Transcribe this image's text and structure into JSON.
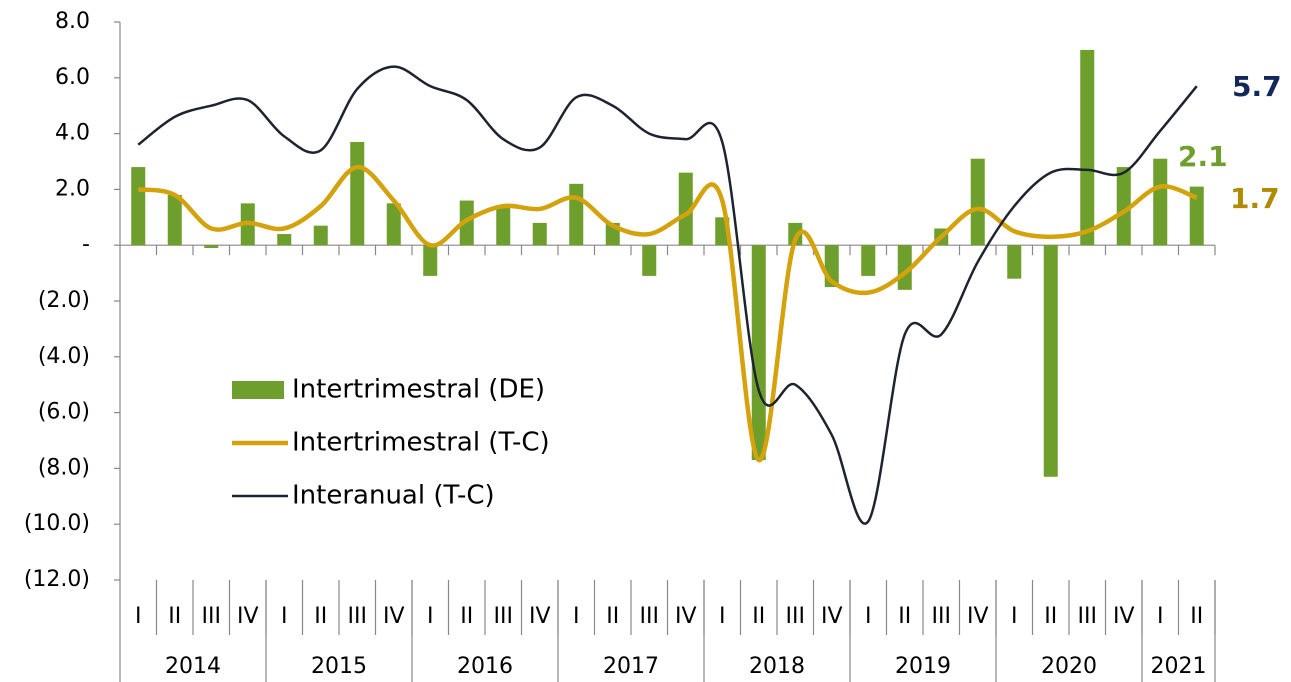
{
  "chart_data": {
    "type": "combo",
    "categories": [
      "I",
      "II",
      "III",
      "IV",
      "I",
      "II",
      "III",
      "IV",
      "I",
      "II",
      "III",
      "IV",
      "I",
      "II",
      "III",
      "IV",
      "I",
      "II",
      "III",
      "IV",
      "I",
      "II",
      "III",
      "IV",
      "I",
      "II",
      "III",
      "IV",
      "I",
      "II"
    ],
    "years": [
      "2014",
      "2015",
      "2016",
      "2017",
      "2018",
      "2019",
      "2020",
      "2021"
    ],
    "series": [
      {
        "name": "Intertrimestral (DE)",
        "type": "bar",
        "color": "#6e9e2c",
        "values": [
          2.8,
          1.8,
          -0.1,
          1.5,
          0.4,
          0.7,
          3.7,
          1.5,
          -1.1,
          1.6,
          1.4,
          0.8,
          2.2,
          0.8,
          -1.1,
          2.6,
          1.0,
          -7.7,
          0.8,
          -1.5,
          -1.1,
          -1.6,
          0.6,
          3.1,
          -1.2,
          -8.3,
          7.0,
          2.8,
          3.1,
          2.1
        ]
      },
      {
        "name": "Intertrimestral (T-C)",
        "type": "line",
        "color": "#d4a20c",
        "values": [
          2.0,
          1.8,
          0.6,
          0.8,
          0.6,
          1.4,
          2.8,
          1.6,
          0.0,
          0.9,
          1.4,
          1.3,
          1.7,
          0.7,
          0.4,
          1.1,
          1.6,
          -7.7,
          0.2,
          -1.3,
          -1.7,
          -1.0,
          0.3,
          1.3,
          0.5,
          0.3,
          0.5,
          1.2,
          2.1,
          1.7
        ]
      },
      {
        "name": "Interanual (T-C)",
        "type": "line",
        "color": "#1e2330",
        "values": [
          3.6,
          4.6,
          5.0,
          5.2,
          3.9,
          3.4,
          5.6,
          6.4,
          5.7,
          5.2,
          3.8,
          3.5,
          5.3,
          5.0,
          4.0,
          3.8,
          3.7,
          -5.2,
          -5.0,
          -6.8,
          -9.9,
          -3.2,
          -3.2,
          -0.6,
          1.4,
          2.6,
          2.7,
          2.6,
          4.1,
          5.7
        ]
      }
    ],
    "end_label_colors": [
      "#6e9e2c",
      "#b08a00",
      "#13275a"
    ],
    "ylim": [
      -12,
      8
    ],
    "yticks": [
      {
        "value": 8,
        "label": "8.0"
      },
      {
        "value": 6,
        "label": "6.0"
      },
      {
        "value": 4,
        "label": "4.0"
      },
      {
        "value": 2,
        "label": "2.0"
      },
      {
        "value": 0,
        "label": "-"
      },
      {
        "value": -2,
        "label": "(2.0)"
      },
      {
        "value": -4,
        "label": "(4.0)"
      },
      {
        "value": -6,
        "label": "(6.0)"
      },
      {
        "value": -8,
        "label": "(8.0)"
      },
      {
        "value": -10,
        "label": "(10.0)"
      },
      {
        "value": -12,
        "label": "(12.0)"
      }
    ],
    "legend": "left"
  }
}
